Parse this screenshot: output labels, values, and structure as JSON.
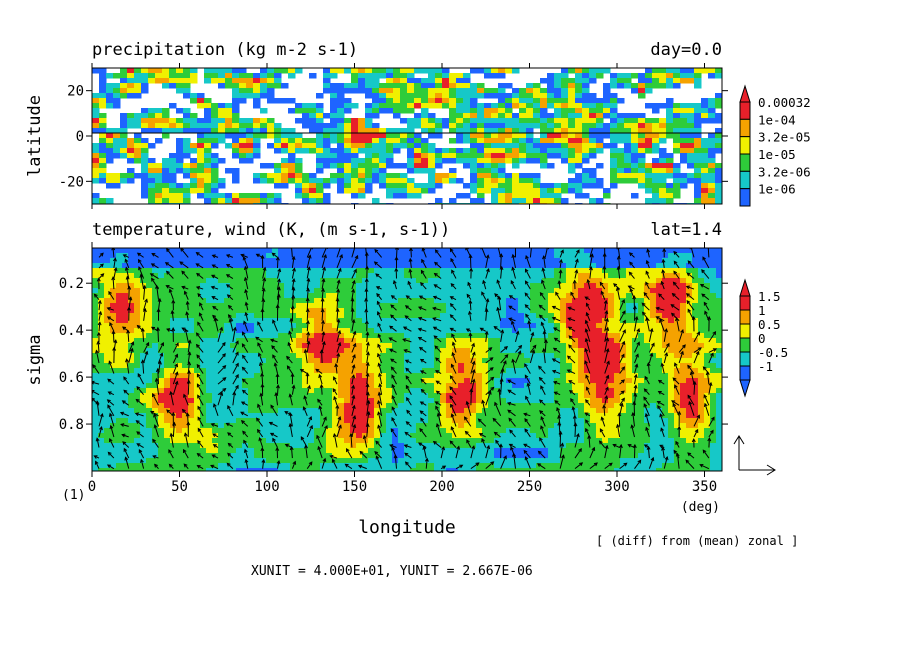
{
  "chart_data": [
    {
      "type": "heatmap",
      "title": "precipitation (kg m-2 s-1)",
      "right_title": "day=0.0",
      "xlabel": "",
      "ylabel": "latitude",
      "xlim": [
        0,
        360
      ],
      "ylim": [
        -30,
        30
      ],
      "yticks": [
        20,
        0,
        -20
      ],
      "ytick_labels": [
        "20",
        "0",
        "-20"
      ],
      "zero_line": true,
      "colorbar": {
        "labels": [
          "0.00032",
          "1e-04",
          "3.2e-05",
          "1e-05",
          "3.2e-06",
          "1e-06"
        ],
        "colors": [
          "#e8202a",
          "#f5a200",
          "#f0f000",
          "#2ecc3a",
          "#16c8c8",
          "#1e64ff"
        ],
        "top_triangle": true
      },
      "grid": false
    },
    {
      "type": "heatmap",
      "title": "temperature, wind (K, (m s-1, s-1))",
      "right_title": "lat=1.4",
      "xlabel": "longitude",
      "ylabel": "sigma",
      "xlim": [
        0,
        360
      ],
      "ylim": [
        1.0,
        0.05
      ],
      "xticks": [
        0,
        50,
        100,
        150,
        200,
        250,
        300,
        350
      ],
      "xtick_labels": [
        "0",
        "50",
        "100",
        "150",
        "200",
        "250",
        "300",
        "350"
      ],
      "x_unit_label": "(deg)",
      "yticks": [
        0.2,
        0.4,
        0.6,
        0.8
      ],
      "ytick_labels": [
        "0.2",
        "0.4",
        "0.6",
        "0.8"
      ],
      "colorbar": {
        "labels": [
          "1.5",
          "1",
          "0.5",
          "0",
          "-0.5",
          "-1"
        ],
        "colors": [
          "#e8202a",
          "#f5a200",
          "#f0f000",
          "#2ecc3a",
          "#16c8c8",
          "#1e64ff"
        ],
        "top_triangle": true,
        "bottom_triangle": true
      },
      "overlay": "wind vectors",
      "grid": false
    }
  ],
  "figure_number": "(1)",
  "note": "[ (diff) from (mean) zonal ]",
  "units_line": "XUNIT = 4.000E+01, YUNIT = 2.667E-06"
}
